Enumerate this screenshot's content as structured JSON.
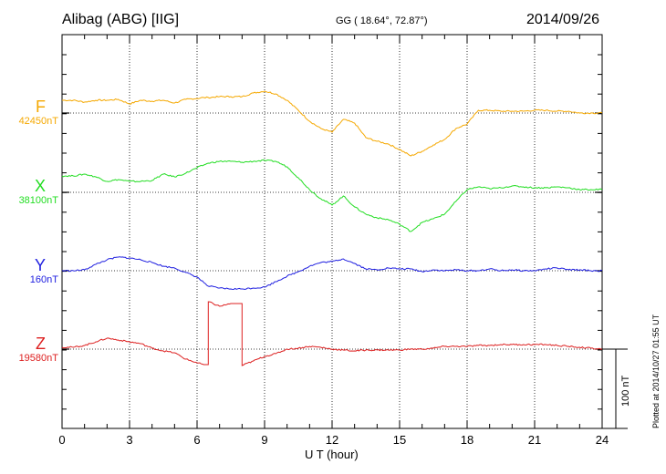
{
  "header": {
    "title": "Alibag (ABG)  [IIG]",
    "coords": "GG ( 18.64°,  72.87°)",
    "date": "2014/09/26",
    "plotted": "Plotted at 2014/10/27 01:55 UT"
  },
  "chart_data": {
    "type": "line",
    "title": "Alibag (ABG)  [IIG]",
    "xlabel": "U T (hour)",
    "ylabel": "",
    "xlim": [
      0,
      24
    ],
    "x_ticks": [
      "0",
      "3",
      "6",
      "9",
      "12",
      "15",
      "18",
      "21",
      "24"
    ],
    "grid": true,
    "scale_bar_label": "100 nT",
    "scale_bar_nT": 100,
    "hours": [
      0,
      0.5,
      1,
      1.5,
      2,
      2.5,
      3,
      3.5,
      4,
      4.5,
      5,
      5.5,
      6,
      6.3,
      6.5,
      7,
      7.5,
      8,
      8.5,
      9,
      9.5,
      10,
      10.5,
      11,
      11.5,
      12,
      12.5,
      13,
      13.5,
      14,
      14.5,
      15,
      15.5,
      16,
      16.5,
      17,
      17.5,
      18,
      18.5,
      19,
      19.5,
      20,
      20.5,
      21,
      21.5,
      22,
      22.5,
      23,
      23.5,
      24
    ],
    "series": [
      {
        "name": "F",
        "baseline_label": "42450nT",
        "color": "#f5a800",
        "values": [
          14,
          14,
          12,
          14,
          14,
          15,
          10,
          14,
          13,
          14,
          11,
          15,
          16,
          17,
          17,
          18,
          18,
          18,
          22,
          24,
          21,
          14,
          3,
          -9,
          -17,
          -21,
          -7,
          -11,
          -27,
          -31,
          -34,
          -40,
          -47,
          -42,
          -35,
          -29,
          -17,
          -12,
          3,
          3,
          2,
          2,
          2,
          3,
          3,
          2,
          2,
          0,
          0,
          0
        ]
      },
      {
        "name": "X",
        "baseline_label": "38100nT",
        "color": "#22dd22",
        "values": [
          18,
          18,
          20,
          17,
          12,
          14,
          12,
          12,
          13,
          20,
          17,
          21,
          27,
          30,
          32,
          34,
          34,
          33,
          34,
          35,
          34,
          28,
          16,
          3,
          -7,
          -14,
          -4,
          -16,
          -24,
          -28,
          -30,
          -35,
          -43,
          -33,
          -29,
          -24,
          -10,
          3,
          6,
          4,
          5,
          7,
          6,
          5,
          5,
          6,
          5,
          3,
          3,
          3
        ]
      },
      {
        "name": "Y",
        "baseline_label": "160nT",
        "color": "#2020e0",
        "values": [
          0,
          0,
          1,
          7,
          12,
          15,
          14,
          12,
          9,
          5,
          3,
          -2,
          -7,
          -13,
          -17,
          -19,
          -20,
          -20,
          -19,
          -18,
          -12,
          -6,
          -1,
          5,
          9,
          10,
          13,
          8,
          2,
          1,
          3,
          2,
          2,
          -1,
          1,
          0,
          1,
          0,
          0,
          2,
          0,
          1,
          0,
          0,
          2,
          3,
          1,
          1,
          0,
          0
        ]
      },
      {
        "name": "Z",
        "baseline_label": "19580nT",
        "color": "#dd2020",
        "values": [
          2,
          2,
          4,
          8,
          12,
          10,
          8,
          6,
          1,
          -2,
          -4,
          -11,
          -15,
          -17,
          52,
          47,
          50,
          -18,
          -13,
          -8,
          -5,
          0,
          1,
          3,
          2,
          0,
          -1,
          -2,
          -1,
          -1,
          -1,
          -1,
          0,
          0,
          1,
          3,
          3,
          3,
          4,
          4,
          5,
          5,
          5,
          5,
          5,
          4,
          3,
          2,
          1,
          0
        ]
      }
    ]
  }
}
